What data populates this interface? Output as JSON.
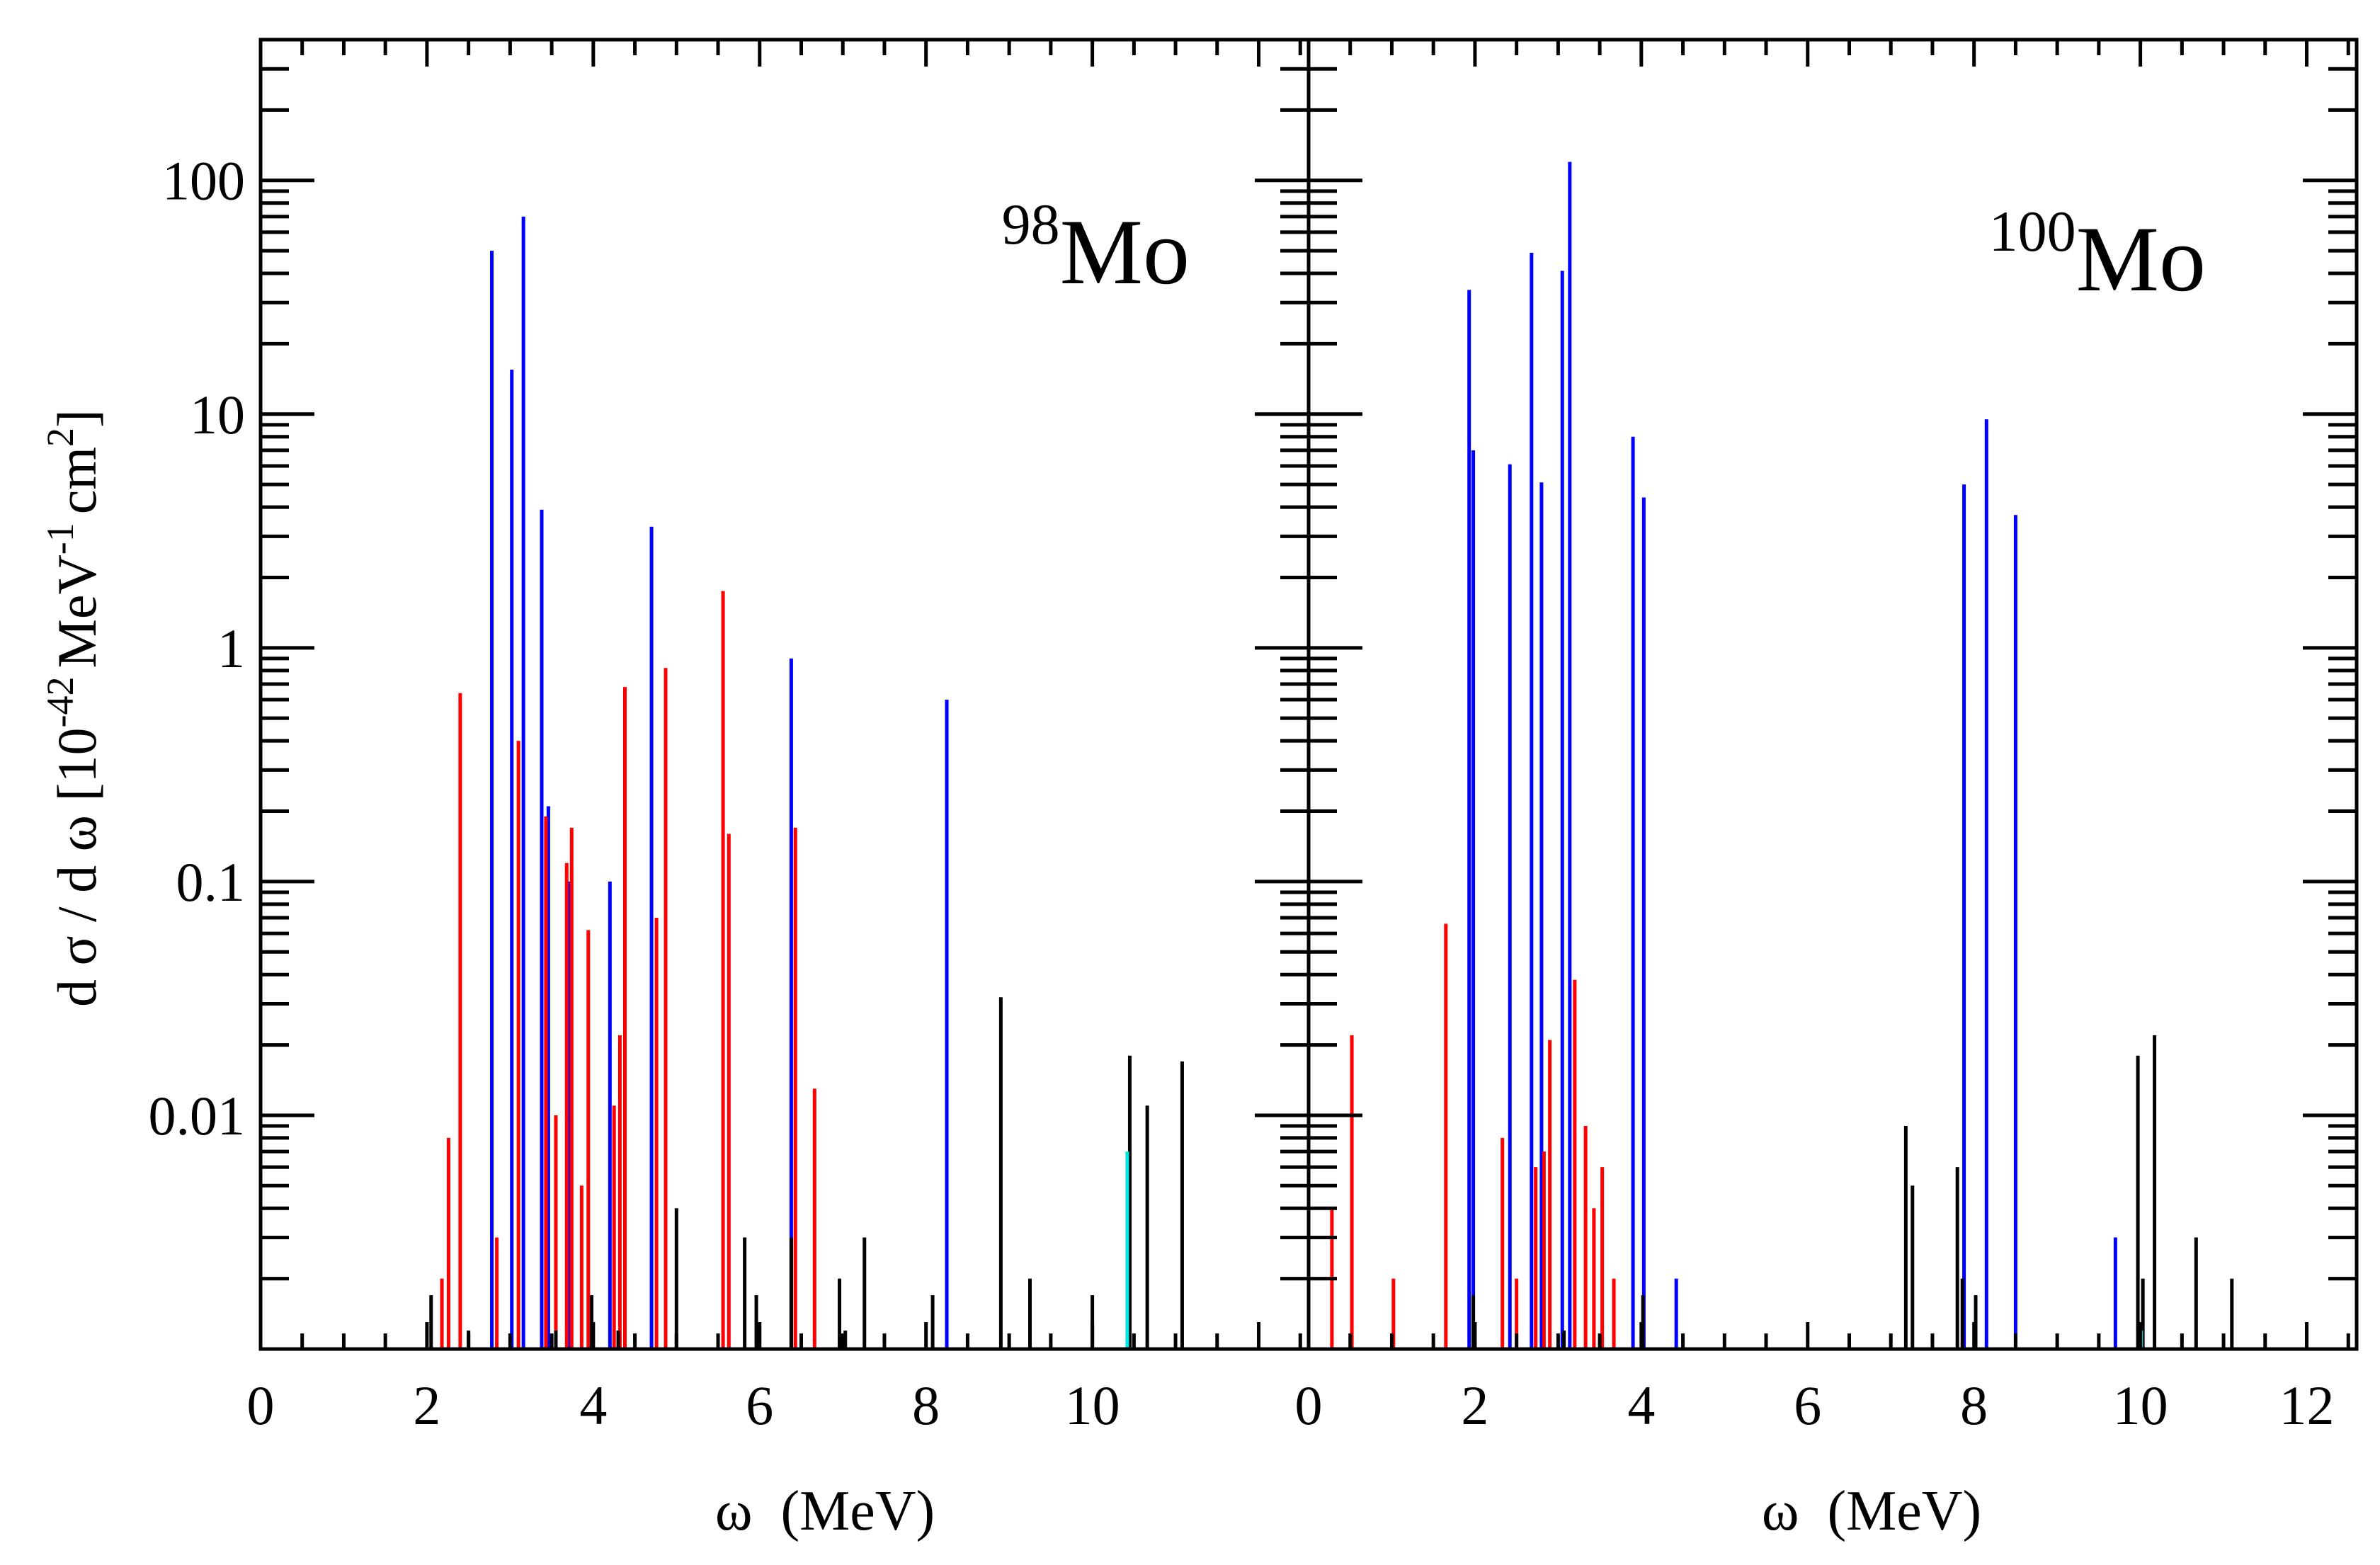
{
  "figure": {
    "ylabel": "d σ / d ω [10⁻⁴² MeV⁻¹ cm²]",
    "ylabel_main": "d σ / d ω [10",
    "ylabel_exp1": "-42",
    "ylabel_mid": "MeV",
    "ylabel_exp2": "-1",
    "ylabel_cm": "cm",
    "ylabel_exp3": "2",
    "ylabel_close": "]"
  },
  "colors": {
    "black": "#000000",
    "blue": "#0000ff",
    "red": "#ff0000",
    "cyan": "#00e5e5"
  },
  "chart_data": [
    {
      "type": "bar",
      "panel": "left",
      "title": "98Mo",
      "title_mass": "98",
      "title_element": "Mo",
      "xlabel": "ω  (MeV)",
      "ylabel": "d σ / d ω [10^-42 MeV^-1 cm^2]",
      "xlim": [
        0,
        12.6
      ],
      "ylim": [
        0.001,
        400
      ],
      "yscale": "log",
      "xticks": [
        0,
        2,
        4,
        6,
        8,
        10
      ],
      "xtick_labels": [
        "0",
        "2",
        "4",
        "6",
        "8",
        "10"
      ],
      "yticks": [
        0.01,
        0.1,
        1,
        10,
        100
      ],
      "ytick_labels": [
        "0.01",
        "0.1",
        "1",
        "10",
        "100"
      ],
      "series": [
        {
          "name": "blue",
          "color": "#0000ff",
          "points": [
            [
              2.78,
              50
            ],
            [
              3.02,
              15.5
            ],
            [
              3.16,
              70
            ],
            [
              3.38,
              3.9
            ],
            [
              3.46,
              0.21
            ],
            [
              3.72,
              0.1
            ],
            [
              4.2,
              0.1
            ],
            [
              4.7,
              3.3
            ],
            [
              6.38,
              0.9
            ],
            [
              8.25,
              0.6
            ]
          ]
        },
        {
          "name": "red",
          "color": "#ff0000",
          "points": [
            [
              2.18,
              0.002
            ],
            [
              2.26,
              0.008
            ],
            [
              2.4,
              0.64
            ],
            [
              2.84,
              0.003
            ],
            [
              3.1,
              0.4
            ],
            [
              3.43,
              0.19
            ],
            [
              3.55,
              0.01
            ],
            [
              3.68,
              0.12
            ],
            [
              3.74,
              0.17
            ],
            [
              3.86,
              0.005
            ],
            [
              3.94,
              0.062
            ],
            [
              4.25,
              0.011
            ],
            [
              4.32,
              0.022
            ],
            [
              4.38,
              0.68
            ],
            [
              4.76,
              0.07
            ],
            [
              4.87,
              0.82
            ],
            [
              5.56,
              1.75
            ],
            [
              5.63,
              0.16
            ],
            [
              6.43,
              0.17
            ],
            [
              6.66,
              0.013
            ]
          ]
        },
        {
          "name": "black",
          "color": "#000000",
          "points": [
            [
              2.05,
              0.0017
            ],
            [
              2.5,
              0.0012
            ],
            [
              3.55,
              0.0012
            ],
            [
              3.98,
              0.0017
            ],
            [
              4.3,
              0.0012
            ],
            [
              5.0,
              0.004
            ],
            [
              5.82,
              0.003
            ],
            [
              5.96,
              0.0017
            ],
            [
              6.38,
              0.003
            ],
            [
              6.96,
              0.002
            ],
            [
              7.03,
              0.0012
            ],
            [
              7.26,
              0.003
            ],
            [
              8.08,
              0.0017
            ],
            [
              8.9,
              0.032
            ],
            [
              9.25,
              0.002
            ],
            [
              10.0,
              0.0017
            ],
            [
              10.45,
              0.018
            ],
            [
              10.66,
              0.011
            ],
            [
              11.08,
              0.017
            ]
          ]
        },
        {
          "name": "cyan",
          "color": "#00e5e5",
          "points": [
            [
              10.42,
              0.007
            ]
          ]
        }
      ]
    },
    {
      "type": "bar",
      "panel": "right",
      "title": "100Mo",
      "title_mass": "100",
      "title_element": "Mo",
      "xlabel": "ω  (MeV)",
      "ylabel": "d σ / d ω [10^-42 MeV^-1 cm^2]",
      "xlim": [
        0,
        12.6
      ],
      "ylim": [
        0.001,
        400
      ],
      "yscale": "log",
      "xticks": [
        0,
        2,
        4,
        6,
        8,
        10,
        12
      ],
      "xtick_labels": [
        "0",
        "2",
        "4",
        "6",
        "8",
        "10",
        "12"
      ],
      "yticks": [
        0.01,
        0.1,
        1,
        10,
        100
      ],
      "ytick_labels": [
        "0.01",
        "0.1",
        "1",
        "10",
        "100"
      ],
      "series": [
        {
          "name": "blue",
          "color": "#0000ff",
          "points": [
            [
              1.93,
              34
            ],
            [
              1.98,
              7
            ],
            [
              2.42,
              6.1
            ],
            [
              2.68,
              49
            ],
            [
              2.8,
              5.1
            ],
            [
              3.05,
              41
            ],
            [
              3.14,
              120
            ],
            [
              3.9,
              8
            ],
            [
              4.03,
              4.4
            ],
            [
              4.42,
              0.002
            ],
            [
              7.88,
              5
            ],
            [
              8.15,
              9.5
            ],
            [
              8.5,
              3.7
            ],
            [
              9.7,
              0.003
            ]
          ]
        },
        {
          "name": "red",
          "color": "#ff0000",
          "points": [
            [
              0.28,
              0.004
            ],
            [
              0.52,
              0.022
            ],
            [
              1.02,
              0.002
            ],
            [
              1.65,
              0.066
            ],
            [
              2.33,
              0.008
            ],
            [
              2.5,
              0.002
            ],
            [
              2.73,
              0.006
            ],
            [
              2.83,
              0.007
            ],
            [
              2.9,
              0.021
            ],
            [
              3.2,
              0.038
            ],
            [
              3.33,
              0.009
            ],
            [
              3.43,
              0.004
            ],
            [
              3.53,
              0.006
            ],
            [
              3.67,
              0.002
            ]
          ]
        },
        {
          "name": "black",
          "color": "#000000",
          "points": [
            [
              1.98,
              0.0017
            ],
            [
              3.07,
              0.0012
            ],
            [
              4.02,
              0.0017
            ],
            [
              7.18,
              0.009
            ],
            [
              7.26,
              0.005
            ],
            [
              7.8,
              0.006
            ],
            [
              7.86,
              0.002
            ],
            [
              8.02,
              0.0017
            ],
            [
              9.97,
              0.018
            ],
            [
              10.03,
              0.002
            ],
            [
              10.17,
              0.022
            ],
            [
              10.67,
              0.003
            ],
            [
              11.1,
              0.002
            ]
          ]
        },
        {
          "name": "cyan",
          "color": "#00e5e5",
          "points": [
            [
              10.01,
              0.0012
            ]
          ]
        }
      ]
    }
  ]
}
